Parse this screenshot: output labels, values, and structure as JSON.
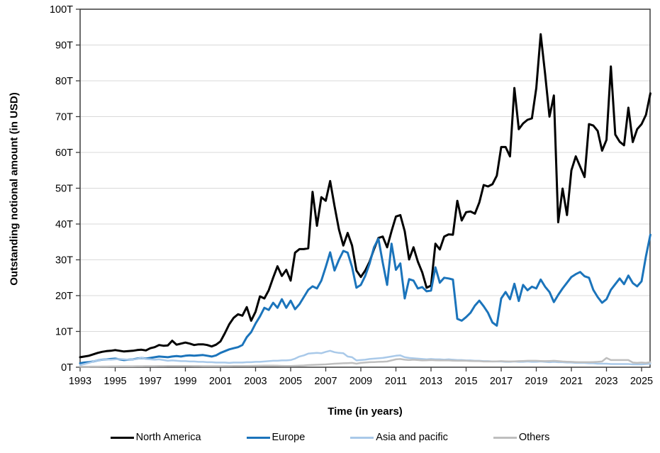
{
  "chart_meta": {
    "y_title": "Outstanding notional amount (in USD)",
    "x_title": "Time (in years)"
  },
  "chart_data": {
    "type": "line",
    "title": "",
    "xlabel": "Time (in years)",
    "ylabel": "Outstanding notional amount (in USD)",
    "x_start": 1993,
    "x_step": 0.25,
    "x_end": 2025.5,
    "ylim": [
      0,
      100
    ],
    "y_tick_step": 10,
    "y_tick_suffix": "T",
    "y_tick_labels": [
      "0T",
      "10T",
      "20T",
      "30T",
      "40T",
      "50T",
      "60T",
      "70T",
      "80T",
      "90T",
      "100T"
    ],
    "x_tick_years": [
      1993,
      1995,
      1997,
      1999,
      2001,
      2003,
      2005,
      2007,
      2009,
      2011,
      2013,
      2015,
      2017,
      2019,
      2021,
      2023,
      2025
    ],
    "grid": true,
    "legend_position": "bottom",
    "colors": {
      "grid": "#d9d9d9",
      "border": "#3a3a3a",
      "tick_text": "#000000"
    },
    "series": [
      {
        "name": "North America",
        "color": "#000000",
        "width": 3,
        "values": [
          2.8,
          3.0,
          3.2,
          3.6,
          4.0,
          4.3,
          4.5,
          4.6,
          4.8,
          4.6,
          4.4,
          4.5,
          4.6,
          4.8,
          4.9,
          4.7,
          5.3,
          5.6,
          6.2,
          6.0,
          6.1,
          7.4,
          6.3,
          6.6,
          6.9,
          6.6,
          6.2,
          6.4,
          6.4,
          6.2,
          5.8,
          6.3,
          7.2,
          9.5,
          12.0,
          13.8,
          14.8,
          14.4,
          16.8,
          13.0,
          15.5,
          19.8,
          19.2,
          21.5,
          25.0,
          28.2,
          25.5,
          27.2,
          24.2,
          32.0,
          33.0,
          33.0,
          33.2,
          49.0,
          39.5,
          47.5,
          46.5,
          52.0,
          45.0,
          38.5,
          34.0,
          37.5,
          34.0,
          27.0,
          25.2,
          27.0,
          29.5,
          33.0,
          36.1,
          36.5,
          33.5,
          38.0,
          42.1,
          42.5,
          38.0,
          30.1,
          33.5,
          29.5,
          26.5,
          22.2,
          22.8,
          34.5,
          32.9,
          36.5,
          37.1,
          37.0,
          46.5,
          41.0,
          43.3,
          43.5,
          42.9,
          46.0,
          50.9,
          50.5,
          51.1,
          53.5,
          61.5,
          61.5,
          58.9,
          78.0,
          66.5,
          68.1,
          69.1,
          69.5,
          78.0,
          93.0,
          82.0,
          70.0,
          75.9,
          40.5,
          49.9,
          42.5,
          55.0,
          58.9,
          56.0,
          53.1,
          67.9,
          67.5,
          66.0,
          60.5,
          63.5,
          84.0,
          65.0,
          63.0,
          62.0,
          72.5,
          62.9,
          66.5,
          67.9,
          70.5,
          76.5
        ]
      },
      {
        "name": "Europe",
        "color": "#1b74bb",
        "width": 3,
        "values": [
          1.1,
          1.3,
          1.4,
          1.6,
          1.9,
          2.1,
          2.2,
          2.3,
          2.4,
          2.2,
          2.0,
          2.1,
          2.2,
          2.4,
          2.6,
          2.4,
          2.6,
          2.8,
          3.0,
          2.9,
          2.8,
          3.0,
          3.1,
          3.0,
          3.2,
          3.3,
          3.2,
          3.3,
          3.4,
          3.2,
          3.0,
          3.3,
          4.0,
          4.5,
          5.0,
          5.3,
          5.6,
          6.2,
          8.4,
          9.8,
          12.2,
          14.2,
          16.6,
          16.0,
          18.0,
          16.6,
          19.0,
          16.6,
          18.6,
          16.2,
          17.6,
          19.6,
          21.6,
          22.6,
          22.0,
          24.2,
          28.0,
          32.1,
          27.0,
          30.0,
          32.5,
          32.0,
          28.0,
          22.2,
          23.0,
          25.5,
          29.0,
          33.5,
          35.9,
          29.2,
          23.0,
          34.5,
          27.2,
          29.0,
          19.2,
          24.6,
          24.2,
          22.0,
          22.4,
          21.2,
          21.4,
          27.9,
          23.6,
          25.0,
          24.8,
          24.5,
          13.5,
          13.0,
          14.0,
          15.2,
          17.2,
          18.6,
          17.0,
          15.2,
          12.5,
          11.6,
          19.2,
          21.0,
          19.0,
          23.3,
          18.5,
          23.0,
          21.5,
          22.5,
          22.0,
          24.5,
          22.5,
          21.0,
          18.2,
          20.2,
          22.0,
          23.6,
          25.2,
          26.0,
          26.6,
          25.4,
          25.0,
          21.6,
          19.6,
          18.0,
          19.0,
          21.6,
          23.2,
          24.8,
          23.2,
          25.6,
          23.5,
          22.6,
          24.0,
          31.0,
          37.0
        ]
      },
      {
        "name": "Asia and pacific",
        "color": "#a9c9e9",
        "width": 2.5,
        "values": [
          0.6,
          0.9,
          1.2,
          1.6,
          1.9,
          2.1,
          2.2,
          2.1,
          2.2,
          2.3,
          2.2,
          2.1,
          2.2,
          2.3,
          2.7,
          2.3,
          2.2,
          2.1,
          2.2,
          2.0,
          1.8,
          1.9,
          1.8,
          1.7,
          1.7,
          1.6,
          1.6,
          1.5,
          1.5,
          1.4,
          1.4,
          1.3,
          1.3,
          1.3,
          1.2,
          1.3,
          1.3,
          1.3,
          1.4,
          1.4,
          1.5,
          1.5,
          1.6,
          1.7,
          1.8,
          1.8,
          1.9,
          1.9,
          2.0,
          2.4,
          3.0,
          3.3,
          3.8,
          3.9,
          4.0,
          3.9,
          4.3,
          4.6,
          4.2,
          4.0,
          3.9,
          3.0,
          2.8,
          1.9,
          2.0,
          2.1,
          2.3,
          2.4,
          2.5,
          2.6,
          2.8,
          3.0,
          3.2,
          3.3,
          2.8,
          2.6,
          2.5,
          2.4,
          2.3,
          2.2,
          2.3,
          2.2,
          2.2,
          2.1,
          2.2,
          2.1,
          2.0,
          2.0,
          1.9,
          1.9,
          1.8,
          1.8,
          1.7,
          1.7,
          1.6,
          1.6,
          1.6,
          1.5,
          1.5,
          1.6,
          1.5,
          1.5,
          1.6,
          1.5,
          1.5,
          1.6,
          1.5,
          1.4,
          1.5,
          1.4,
          1.4,
          1.3,
          1.3,
          1.2,
          1.2,
          1.2,
          1.1,
          1.1,
          1.0,
          1.0,
          1.0,
          0.9,
          0.9,
          0.9,
          0.9,
          0.9,
          0.8,
          0.8,
          0.8,
          0.9,
          1.0
        ]
      },
      {
        "name": "Others",
        "color": "#bfbfbf",
        "width": 2.5,
        "values": [
          0.15,
          0.15,
          0.16,
          0.17,
          0.18,
          0.19,
          0.2,
          0.21,
          0.22,
          0.23,
          0.24,
          0.25,
          0.26,
          0.27,
          0.28,
          0.29,
          0.3,
          0.3,
          0.31,
          0.32,
          0.33,
          0.34,
          0.35,
          0.34,
          0.34,
          0.33,
          0.32,
          0.31,
          0.3,
          0.3,
          0.3,
          0.3,
          0.3,
          0.31,
          0.32,
          0.33,
          0.34,
          0.35,
          0.36,
          0.38,
          0.4,
          0.41,
          0.43,
          0.44,
          0.45,
          0.42,
          0.38,
          0.36,
          0.35,
          0.4,
          0.45,
          0.5,
          0.6,
          0.65,
          0.7,
          0.75,
          0.8,
          0.9,
          1.0,
          1.05,
          1.1,
          1.15,
          1.2,
          1.0,
          1.2,
          1.3,
          1.4,
          1.45,
          1.5,
          1.55,
          1.6,
          1.9,
          2.2,
          2.3,
          2.1,
          2.0,
          2.1,
          2.0,
          1.9,
          1.95,
          2.0,
          1.95,
          1.9,
          1.9,
          1.9,
          1.85,
          1.8,
          1.8,
          1.8,
          1.75,
          1.7,
          1.7,
          1.6,
          1.6,
          1.6,
          1.65,
          1.7,
          1.65,
          1.6,
          1.65,
          1.7,
          1.75,
          1.8,
          1.8,
          1.8,
          1.75,
          1.7,
          1.75,
          1.8,
          1.7,
          1.6,
          1.55,
          1.5,
          1.45,
          1.4,
          1.4,
          1.4,
          1.45,
          1.5,
          1.6,
          2.6,
          2.0,
          2.0,
          2.0,
          2.0,
          2.0,
          1.3,
          1.2,
          1.3,
          1.2,
          1.4
        ]
      }
    ]
  }
}
